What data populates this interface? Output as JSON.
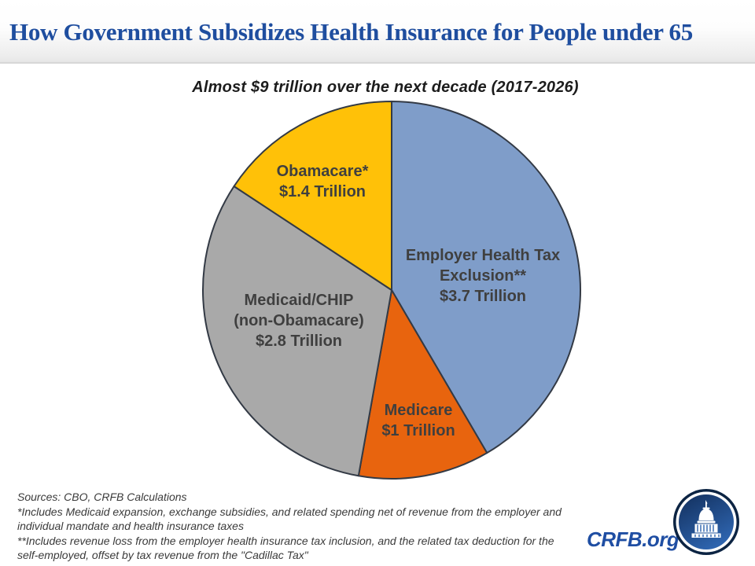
{
  "header": {
    "title": "How Government Subsidizes Health Insurance for People under 65",
    "title_color": "#1F4E9F"
  },
  "chart_data": {
    "type": "pie",
    "title": "Almost $9 trillion over the next decade (2017-2026)",
    "unit": "trillions of dollars, 2017-2026",
    "total_value": 8.9,
    "direction": "clockwise",
    "start_angle_deg": 0,
    "outline_color": "#333a45",
    "legend_position": "labels-inside-slices",
    "slices": [
      {
        "id": "employer-health-tax-exclusion",
        "label": "Employer Health Tax Exclusion**",
        "label_lines": [
          "Employer Health Tax",
          "Exclusion**",
          "$3.7 Trillion"
        ],
        "value": 3.7,
        "value_label": "$3.7 Trillion",
        "color": "#7f9dc9"
      },
      {
        "id": "medicare",
        "label": "Medicare",
        "label_lines": [
          "Medicare",
          "$1 Trillion"
        ],
        "value": 1.0,
        "value_label": "$1 Trillion",
        "color": "#e8640e"
      },
      {
        "id": "medicaid-chip",
        "label": "Medicaid/CHIP (non-Obamacare)",
        "label_lines": [
          "Medicaid/CHIP",
          "(non-Obamacare)",
          "$2.8 Trillion"
        ],
        "value": 2.8,
        "value_label": "$2.8 Trillion",
        "color": "#a9a9a9"
      },
      {
        "id": "obamacare",
        "label": "Obamacare*",
        "label_lines": [
          "Obamacare*",
          "$1.4 Trillion"
        ],
        "value": 1.4,
        "value_label": "$1.4 Trillion",
        "color": "#ffc108"
      }
    ]
  },
  "footnotes": {
    "sources": "Sources: CBO, CRFB Calculations",
    "note1": "*Includes Medicaid expansion, exchange subsidies, and related spending net of revenue from the employer and individual mandate and health insurance taxes",
    "note2": "**Includes revenue loss from the employer health insurance tax inclusion, and the related tax deduction for the self-employed, offset by tax revenue from the \"Cadillac Tax\""
  },
  "footer": {
    "brand": "CRFB.org",
    "brand_color": "#1F4EA3",
    "logo": "capitol-dome"
  }
}
